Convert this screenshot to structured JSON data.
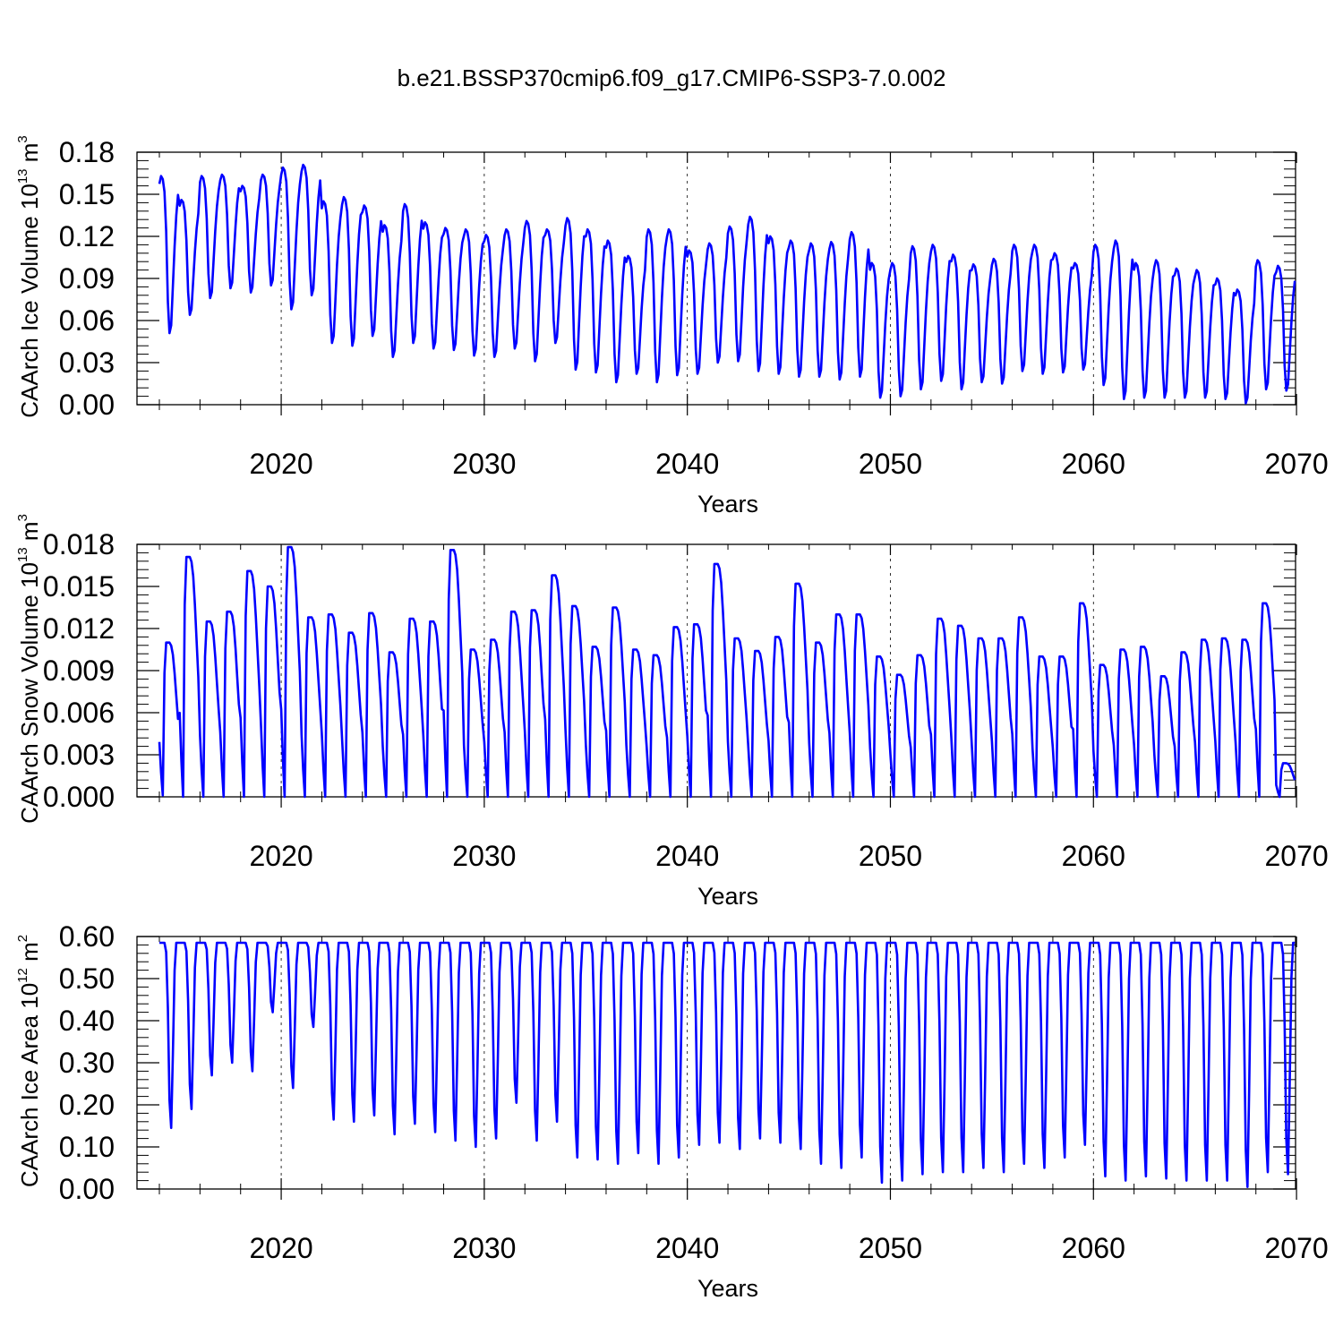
{
  "title": "b.e21.BSSP370cmip6.f09_g17.CMIP6-SSP3-7.0.002",
  "colors": {
    "line": "#0000ff",
    "axis": "#000000",
    "grid": "#000000"
  },
  "chart_data": [
    {
      "type": "line",
      "title": "b.e21.BSSP370cmip6.f09_g17.CMIP6-SSP3-7.0.002",
      "xlabel": "Years",
      "ylabel": {
        "prefix": "CAArch Ice Volume 10",
        "exp": "13",
        "unit": " m",
        "unit_exp": "3"
      },
      "xlim": [
        2014,
        2070
      ],
      "ylim": [
        0,
        0.18
      ],
      "xticks": [
        "2020",
        "2030",
        "2040",
        "2050",
        "2060",
        "2070"
      ],
      "yticks": [
        "0.00",
        "0.03",
        "0.06",
        "0.09",
        "0.12",
        "0.15",
        "0.18"
      ],
      "grid": "vertical dashed at decades",
      "series": [
        {
          "x_start": 2014,
          "step": "monthly",
          "annual_max": [
            0.163,
            0.146,
            0.163,
            0.164,
            0.156,
            0.164,
            0.169,
            0.171,
            0.145,
            0.148,
            0.142,
            0.128,
            0.143,
            0.13,
            0.126,
            0.125,
            0.121,
            0.125,
            0.131,
            0.125,
            0.133,
            0.125,
            0.117,
            0.106,
            0.125,
            0.125,
            0.11,
            0.115,
            0.127,
            0.134,
            0.12,
            0.117,
            0.115,
            0.116,
            0.123,
            0.101,
            0.101,
            0.113,
            0.114,
            0.107,
            0.1,
            0.104,
            0.114,
            0.114,
            0.108,
            0.101,
            0.114,
            0.117,
            0.101,
            0.103,
            0.097,
            0.096,
            0.09,
            0.082,
            0.103,
            0.099
          ],
          "annual_min": [
            0.051,
            0.064,
            0.076,
            0.083,
            0.08,
            0.085,
            0.068,
            0.078,
            0.044,
            0.042,
            0.049,
            0.034,
            0.044,
            0.04,
            0.039,
            0.035,
            0.034,
            0.04,
            0.031,
            0.044,
            0.025,
            0.023,
            0.016,
            0.022,
            0.016,
            0.021,
            0.022,
            0.03,
            0.031,
            0.024,
            0.022,
            0.02,
            0.02,
            0.018,
            0.02,
            0.005,
            0.006,
            0.011,
            0.017,
            0.011,
            0.016,
            0.015,
            0.024,
            0.022,
            0.023,
            0.025,
            0.014,
            0.004,
            0.005,
            0.005,
            0.005,
            0.005,
            0.004,
            0.001,
            0.011,
            0.01
          ]
        }
      ]
    },
    {
      "type": "line",
      "xlabel": "Years",
      "ylabel": {
        "prefix": "CAArch Snow Volume 10",
        "exp": "13",
        "unit": " m",
        "unit_exp": "3"
      },
      "xlim": [
        2014,
        2070
      ],
      "ylim": [
        0,
        0.018
      ],
      "xticks": [
        "2020",
        "2030",
        "2040",
        "2050",
        "2060",
        "2070"
      ],
      "yticks": [
        "0.000",
        "0.003",
        "0.006",
        "0.009",
        "0.012",
        "0.015",
        "0.018"
      ],
      "grid": "vertical dashed at decades",
      "series": [
        {
          "x_start": 2014,
          "step": "monthly",
          "annual_max": [
            0.011,
            0.0171,
            0.0125,
            0.0132,
            0.0161,
            0.015,
            0.0178,
            0.0128,
            0.013,
            0.0117,
            0.0131,
            0.0103,
            0.0127,
            0.0125,
            0.0176,
            0.0105,
            0.0112,
            0.0132,
            0.0133,
            0.0158,
            0.0136,
            0.0107,
            0.0135,
            0.0105,
            0.0101,
            0.0121,
            0.0123,
            0.0166,
            0.0113,
            0.0104,
            0.0114,
            0.0152,
            0.011,
            0.013,
            0.013,
            0.01,
            0.0087,
            0.0101,
            0.0127,
            0.0122,
            0.0113,
            0.0113,
            0.0128,
            0.01,
            0.01,
            0.0138,
            0.0094,
            0.0105,
            0.0107,
            0.0086,
            0.0103,
            0.0112,
            0.0113,
            0.0112,
            0.0138,
            0.0024
          ],
          "annual_min": [
            0.0001,
            0.0,
            0.0,
            0.0,
            0.0,
            0.0,
            0.0,
            0.0,
            0.0,
            0.0,
            0.0,
            0.0,
            0.0,
            0.0,
            0.0,
            0.0,
            0.0,
            0.0,
            0.0,
            0.0,
            0.0,
            0.0,
            0.0,
            0.0,
            0.0,
            0.0,
            0.0,
            0.0,
            0.0,
            0.0,
            0.0,
            0.0,
            0.0,
            0.0,
            0.0,
            0.0,
            0.0,
            0.0,
            0.0,
            0.0,
            0.0,
            0.0,
            0.0,
            0.0,
            0.0,
            0.0,
            0.0,
            0.0,
            0.0,
            0.0,
            0.0,
            0.0,
            0.0,
            0.0,
            0.0,
            0.0
          ]
        }
      ]
    },
    {
      "type": "line",
      "xlabel": "Years",
      "ylabel": {
        "prefix": "CAArch Ice Area 10",
        "exp": "12",
        "unit": " m",
        "unit_exp": "2"
      },
      "xlim": [
        2014,
        2070
      ],
      "ylim": [
        0,
        0.6
      ],
      "xticks": [
        "2020",
        "2030",
        "2040",
        "2050",
        "2060",
        "2070"
      ],
      "yticks": [
        "0.00",
        "0.10",
        "0.20",
        "0.30",
        "0.40",
        "0.50",
        "0.60"
      ],
      "grid": "vertical dashed at decades",
      "series": [
        {
          "x_start": 2014,
          "step": "monthly",
          "annual_max": [
            0.585,
            0.585,
            0.585,
            0.585,
            0.585,
            0.585,
            0.585,
            0.585,
            0.585,
            0.585,
            0.585,
            0.585,
            0.585,
            0.585,
            0.585,
            0.585,
            0.585,
            0.585,
            0.585,
            0.585,
            0.585,
            0.585,
            0.585,
            0.585,
            0.585,
            0.585,
            0.585,
            0.585,
            0.585,
            0.585,
            0.585,
            0.585,
            0.585,
            0.585,
            0.585,
            0.585,
            0.585,
            0.585,
            0.585,
            0.585,
            0.585,
            0.585,
            0.585,
            0.585,
            0.585,
            0.585,
            0.585,
            0.585,
            0.585,
            0.585,
            0.585,
            0.585,
            0.585,
            0.585,
            0.585,
            0.585
          ],
          "annual_min": [
            0.145,
            0.19,
            0.27,
            0.3,
            0.28,
            0.42,
            0.24,
            0.385,
            0.165,
            0.16,
            0.175,
            0.13,
            0.155,
            0.135,
            0.115,
            0.1,
            0.12,
            0.205,
            0.115,
            0.16,
            0.075,
            0.07,
            0.06,
            0.085,
            0.06,
            0.075,
            0.105,
            0.11,
            0.095,
            0.12,
            0.11,
            0.095,
            0.06,
            0.05,
            0.075,
            0.015,
            0.02,
            0.035,
            0.04,
            0.04,
            0.05,
            0.04,
            0.06,
            0.05,
            0.075,
            0.105,
            0.03,
            0.02,
            0.03,
            0.025,
            0.02,
            0.02,
            0.02,
            0.005,
            0.04,
            0.035
          ]
        }
      ]
    }
  ]
}
